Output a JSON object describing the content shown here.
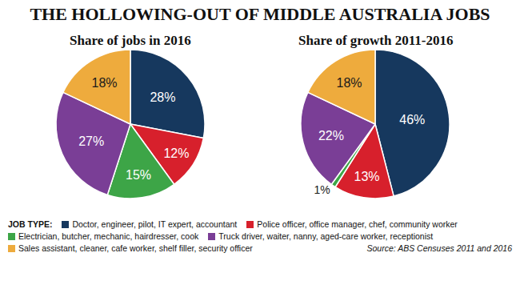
{
  "title": "THE HOLLOWING-OUT OF MIDDLE AUSTRALIA JOBS",
  "legend_title": "JOB TYPE:",
  "source": "Source: ABS Censuses 2011 and 2016",
  "chart_data": [
    {
      "type": "pie",
      "title": "Share of jobs in 2016",
      "categories": [
        "Doctor, engineer, pilot, IT expert, accountant",
        "Police officer, office manager, chef, community worker",
        "Electrician, butcher, mechanic, hairdresser, cook",
        "Truck driver, waiter, nanny, aged-care worker, receptionist",
        "Sales assistant, cleaner, cafe worker, shelf filler, security officer"
      ],
      "values": [
        28,
        12,
        15,
        27,
        18
      ],
      "value_labels": [
        "28%",
        "12%",
        "15%",
        "27%",
        "18%"
      ],
      "colors": [
        "#16385e",
        "#d7202c",
        "#3da547",
        "#7a3e96",
        "#eeab3d"
      ],
      "data_labels": true,
      "legend": "bottom"
    },
    {
      "type": "pie",
      "title": "Share of growth 2011-2016",
      "categories": [
        "Doctor, engineer, pilot, IT expert, accountant",
        "Police officer, office manager, chef, community worker",
        "Electrician, butcher, mechanic, hairdresser, cook",
        "Truck driver, waiter, nanny, aged-care worker, receptionist",
        "Sales assistant, cleaner, cafe worker, shelf filler, security officer"
      ],
      "values": [
        46,
        13,
        1,
        22,
        18
      ],
      "value_labels": [
        "46%",
        "13%",
        "1%",
        "22%",
        "18%"
      ],
      "colors": [
        "#16385e",
        "#d7202c",
        "#3da547",
        "#7a3e96",
        "#eeab3d"
      ],
      "data_labels": true,
      "legend": "bottom"
    }
  ]
}
